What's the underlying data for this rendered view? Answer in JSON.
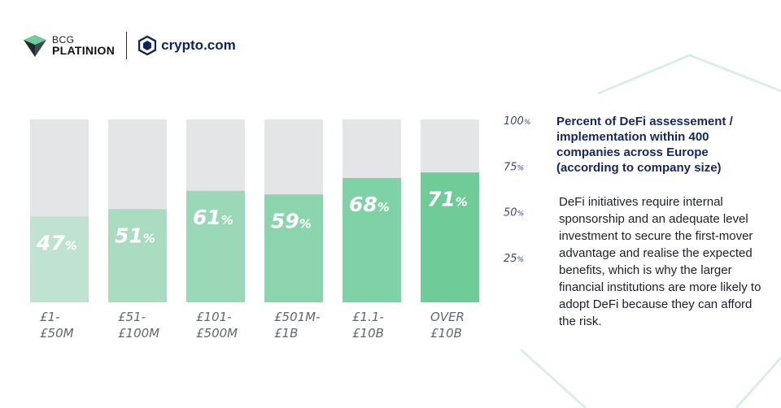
{
  "logos": {
    "bcg_small": "BCG",
    "bcg_big": "PLATINION",
    "crypto": "crypto.com"
  },
  "side": {
    "title": "Percent of DeFi assessement / implementation within 400 companies across Europe (according to company size)",
    "body": "DeFi initiatives require internal sponsorship and an adequate level investment to secure the first-mover advantage and realise the expected benefits, which is why the larger financial institutions are more likely to adopt DeFi because they can afford the risk."
  },
  "colors": {
    "bar_bg": "#e4e5e7",
    "bars": [
      "#bfe3d0",
      "#a9dcc0",
      "#9ad8b7",
      "#8bd4ae",
      "#7fd2a5",
      "#6fcc98"
    ],
    "deco_line": "#d9efe4"
  },
  "chart_data": {
    "type": "bar",
    "categories": [
      [
        "£1-",
        "£50M"
      ],
      [
        "£51-",
        "£100M"
      ],
      [
        "£101-",
        "£500M"
      ],
      [
        "£501M-",
        "£1B"
      ],
      [
        "£1.1-",
        "£10B"
      ],
      [
        "OVER",
        "£10B"
      ]
    ],
    "values": [
      47,
      51,
      61,
      59,
      68,
      71
    ],
    "value_labels": [
      {
        "num": "47",
        "unit": "%"
      },
      {
        "num": "51",
        "unit": "%"
      },
      {
        "num": "61",
        "unit": "%"
      },
      {
        "num": "59",
        "unit": "%"
      },
      {
        "num": "68",
        "unit": "%"
      },
      {
        "num": "71",
        "unit": "%"
      }
    ],
    "ylim": [
      0,
      100
    ],
    "y_ticks": [
      {
        "value": 100,
        "num": "100",
        "unit": "%"
      },
      {
        "value": 75,
        "num": "75",
        "unit": "%"
      },
      {
        "value": 50,
        "num": "50",
        "unit": "%"
      },
      {
        "value": 25,
        "num": "25",
        "unit": "%"
      }
    ],
    "y_axis_position": "right",
    "grid": false,
    "legend": "none"
  }
}
